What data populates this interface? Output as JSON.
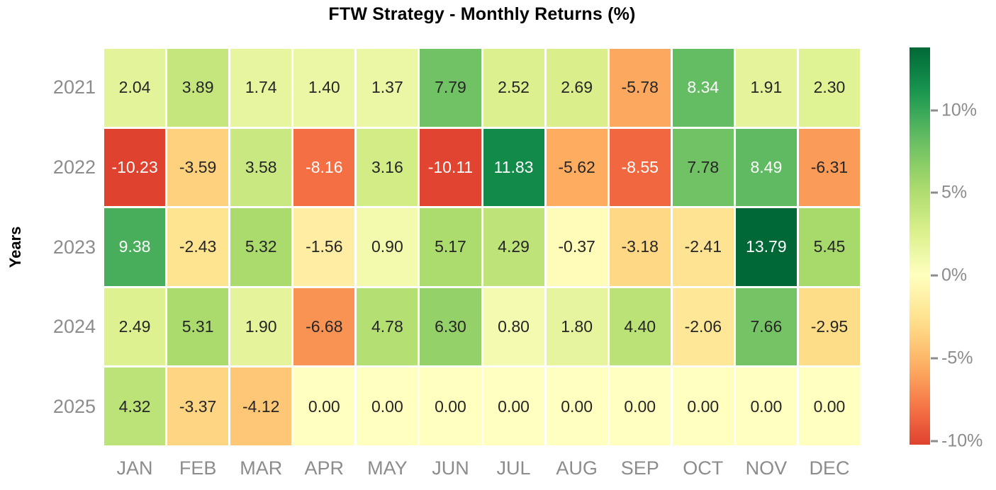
{
  "chart_data": {
    "type": "heatmap",
    "title": "FTW Strategy - Monthly Returns (%)",
    "ylabel": "Years",
    "xlabel": "",
    "rows": [
      "2021",
      "2022",
      "2023",
      "2024",
      "2025"
    ],
    "columns": [
      "JAN",
      "FEB",
      "MAR",
      "APR",
      "MAY",
      "JUN",
      "JUL",
      "AUG",
      "SEP",
      "OCT",
      "NOV",
      "DEC"
    ],
    "values": [
      [
        2.04,
        3.89,
        1.74,
        1.4,
        1.37,
        7.79,
        2.52,
        2.69,
        -5.78,
        8.34,
        1.91,
        2.3
      ],
      [
        -10.23,
        -3.59,
        3.58,
        -8.16,
        3.16,
        -10.11,
        11.83,
        -5.62,
        -8.55,
        7.78,
        8.49,
        -6.31
      ],
      [
        9.38,
        -2.43,
        5.32,
        -1.56,
        0.9,
        5.17,
        4.29,
        -0.37,
        -3.18,
        -2.41,
        13.79,
        5.45
      ],
      [
        2.49,
        5.31,
        1.9,
        -6.68,
        4.78,
        6.3,
        0.8,
        1.8,
        4.4,
        -2.06,
        7.66,
        -2.95
      ],
      [
        4.32,
        -3.37,
        -4.12,
        0.0,
        0.0,
        0.0,
        0.0,
        0.0,
        0.0,
        0.0,
        0.0,
        0.0
      ]
    ],
    "value_decimals": 2,
    "colormap": "RdYlGn",
    "center": 0,
    "vmin": -10.23,
    "vmax": 13.79,
    "colormap_anchors": [
      "#a50026",
      "#d73027",
      "#f46d43",
      "#fdae61",
      "#fee08b",
      "#ffffbf",
      "#d9ef8b",
      "#a6d96a",
      "#66bd63",
      "#1a9850",
      "#006837"
    ],
    "legend_position": "right",
    "grid": false,
    "colorbar": {
      "ticks": [
        {
          "label": "10%",
          "value": 10
        },
        {
          "label": "5%",
          "value": 5
        },
        {
          "label": "0%",
          "value": 0
        },
        {
          "label": "-5%",
          "value": -5
        },
        {
          "label": "-10%",
          "value": -10
        }
      ]
    },
    "colors": {
      "background": "#ffffff",
      "title": "#000000",
      "axis_label": "#000000",
      "tick_label": "#8c8c8c",
      "annotation_dark": "#262626",
      "annotation_light": "#ffffff"
    }
  }
}
